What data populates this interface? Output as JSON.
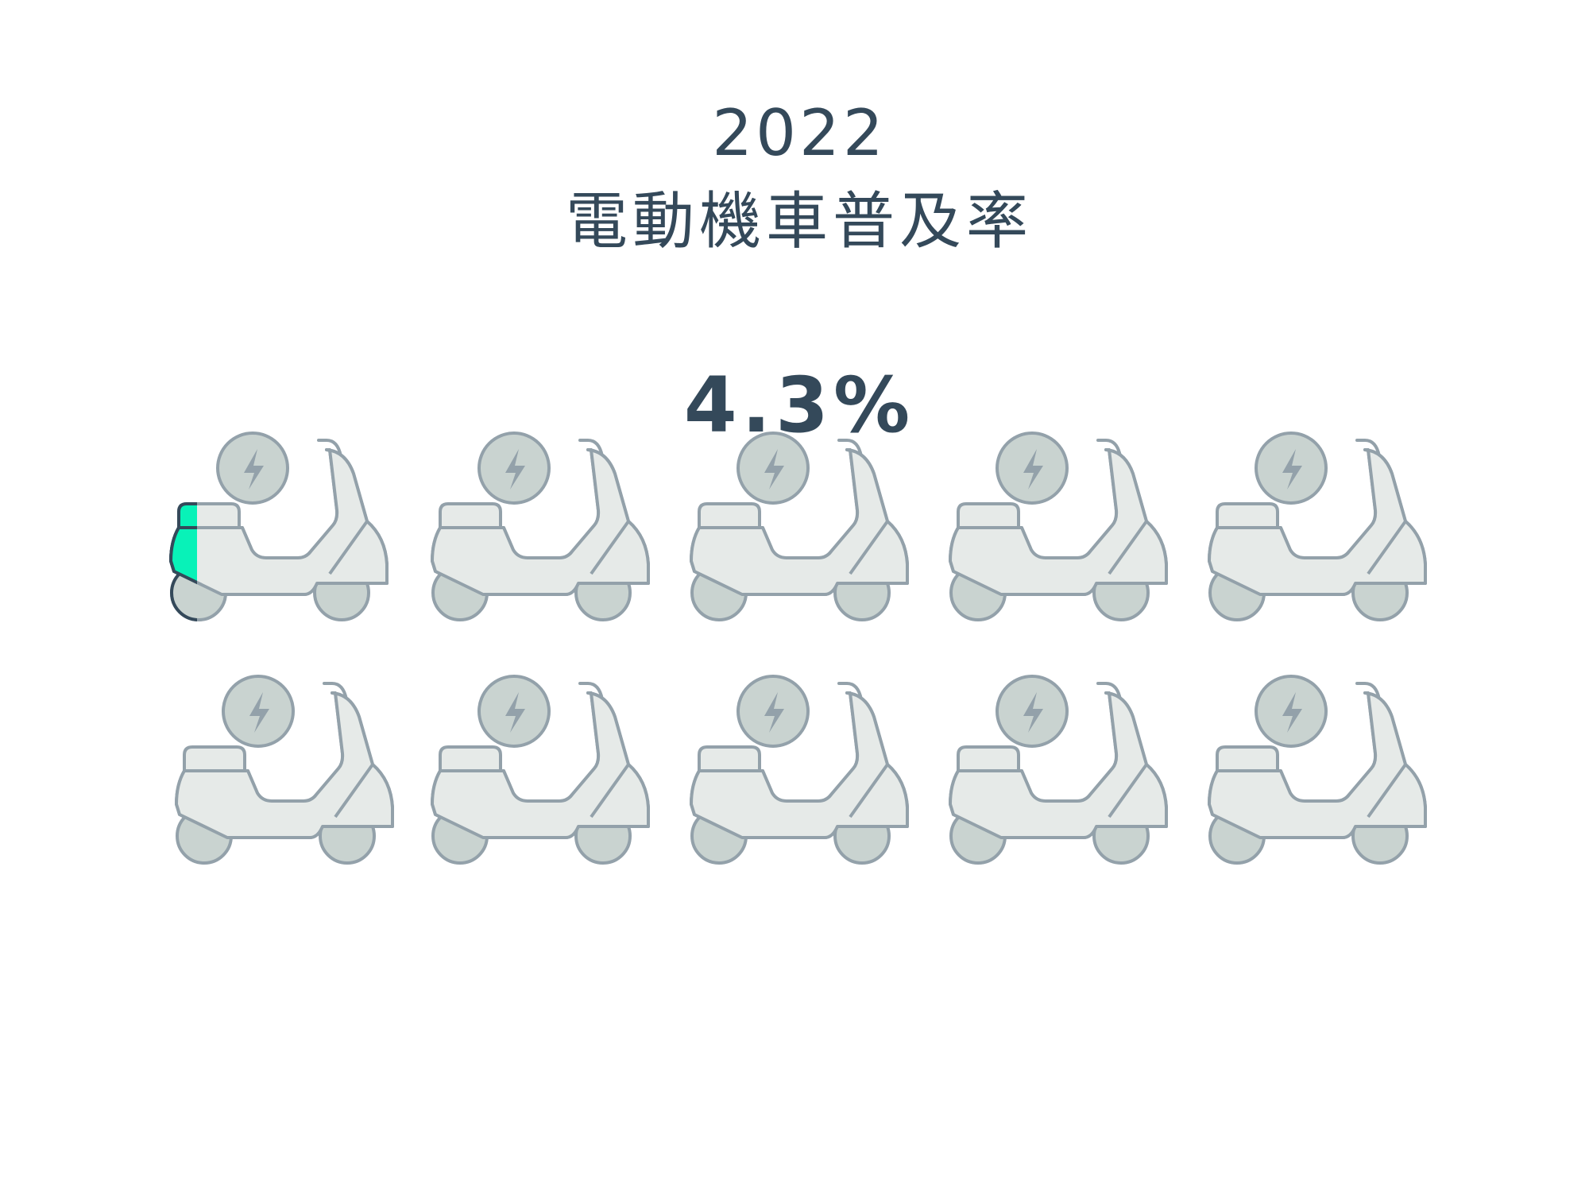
{
  "header": {
    "year": "2022",
    "title": "電動機車普及率",
    "value_label": "4.3%"
  },
  "chart_data": {
    "type": "pictograph",
    "title": "電動機車普及率",
    "year": "2022",
    "value_percent": 4.3,
    "units_total": 10,
    "units_per_row": 5,
    "unit_icon": "electric-scooter-icon",
    "colors": {
      "filled_body": "#08f2b8",
      "filled_badge": "#fff04f",
      "filled_outline": "#34495a",
      "empty_body": "#e6eae8",
      "empty_wheel": "#c9d3d0",
      "empty_outline": "#93a1aa",
      "text": "#34495a"
    }
  }
}
